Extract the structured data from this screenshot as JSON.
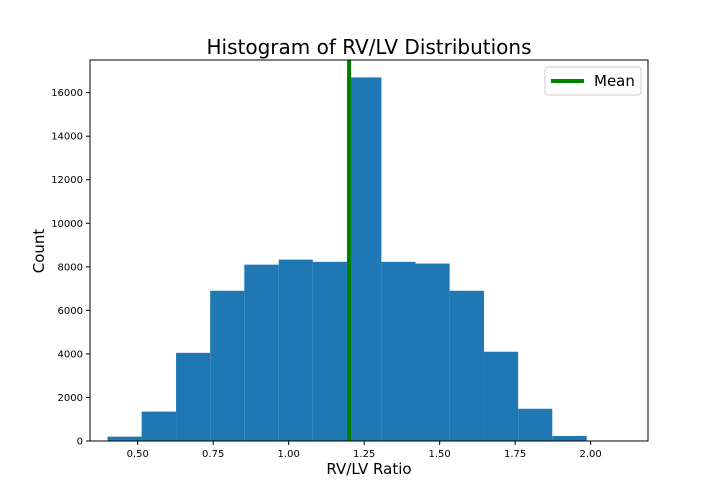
{
  "chart_data": {
    "type": "bar",
    "title": "Histogram of RV/LV Distributions",
    "xlabel": "RV/LV Ratio",
    "ylabel": "Count",
    "xlim": [
      0.342,
      2.19
    ],
    "ylim": [
      0,
      17500
    ],
    "bin_edges": [
      0.4,
      0.513,
      0.627,
      0.74,
      0.853,
      0.967,
      1.08,
      1.193,
      1.307,
      1.42,
      1.533,
      1.647,
      1.76,
      1.873,
      1.987
    ],
    "counts": [
      200,
      1350,
      4050,
      6900,
      8100,
      8330,
      8230,
      16700,
      8230,
      8150,
      6900,
      4100,
      1480,
      230
    ],
    "mean_line": {
      "x": 1.2,
      "color": "#008000"
    },
    "bar_color": "#1f77b4",
    "x_ticks": [
      {
        "value": 0.5,
        "label": "0.50"
      },
      {
        "value": 0.75,
        "label": "0.75"
      },
      {
        "value": 1.0,
        "label": "1.00"
      },
      {
        "value": 1.25,
        "label": "1.25"
      },
      {
        "value": 1.5,
        "label": "1.50"
      },
      {
        "value": 1.75,
        "label": "1.75"
      },
      {
        "value": 2.0,
        "label": "2.00"
      }
    ],
    "y_ticks": [
      {
        "value": 0,
        "label": "0"
      },
      {
        "value": 2000,
        "label": "2000"
      },
      {
        "value": 4000,
        "label": "4000"
      },
      {
        "value": 6000,
        "label": "6000"
      },
      {
        "value": 8000,
        "label": "8000"
      },
      {
        "value": 10000,
        "label": "10000"
      },
      {
        "value": 12000,
        "label": "12000"
      },
      {
        "value": 14000,
        "label": "14000"
      },
      {
        "value": 16000,
        "label": "16000"
      }
    ],
    "legend": {
      "entries": [
        {
          "label": "Mean",
          "color": "#008000"
        }
      ],
      "placement": "top-right"
    },
    "grid": false
  }
}
